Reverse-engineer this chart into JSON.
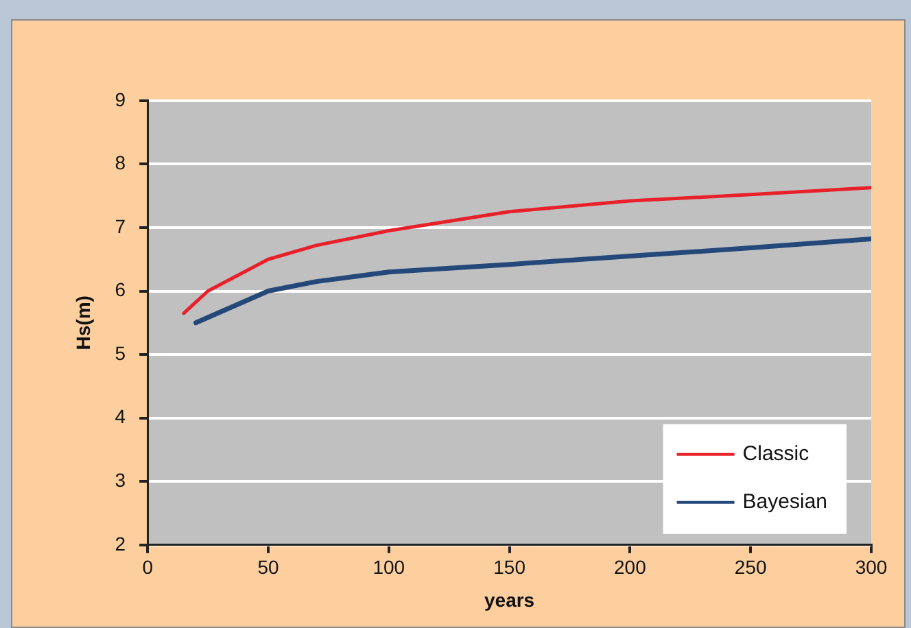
{
  "chart_data": {
    "type": "line",
    "xlabel": "years",
    "ylabel": "Hs(m)",
    "series": [
      {
        "name": "Classic",
        "color": "#e8202a",
        "x": [
          15,
          25,
          50,
          70,
          100,
          150,
          200,
          250,
          300
        ],
        "values": [
          5.65,
          6.0,
          6.5,
          6.72,
          6.95,
          7.25,
          7.42,
          7.52,
          7.63
        ]
      },
      {
        "name": "Bayesian",
        "color": "#24487a",
        "x": [
          20,
          50,
          70,
          100,
          150,
          200,
          250,
          300
        ],
        "values": [
          5.5,
          6.0,
          6.15,
          6.3,
          6.42,
          6.55,
          6.68,
          6.82
        ]
      }
    ],
    "xlim": [
      0,
      300
    ],
    "xticks": [
      0,
      50,
      100,
      150,
      200,
      250,
      300
    ],
    "ylim": [
      2,
      9
    ],
    "yticks": [
      2,
      3,
      4,
      5,
      6,
      7,
      8,
      9
    ],
    "grid": "y",
    "legend": "bottom right",
    "marker": "none",
    "line_style": "solid"
  }
}
